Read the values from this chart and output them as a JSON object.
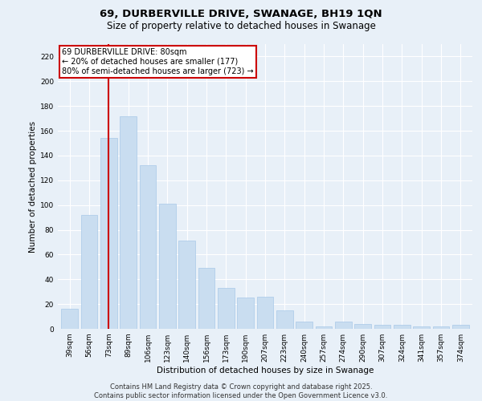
{
  "title": "69, DURBERVILLE DRIVE, SWANAGE, BH19 1QN",
  "subtitle": "Size of property relative to detached houses in Swanage",
  "xlabel": "Distribution of detached houses by size in Swanage",
  "ylabel": "Number of detached properties",
  "categories": [
    "39sqm",
    "56sqm",
    "73sqm",
    "89sqm",
    "106sqm",
    "123sqm",
    "140sqm",
    "156sqm",
    "173sqm",
    "190sqm",
    "207sqm",
    "223sqm",
    "240sqm",
    "257sqm",
    "274sqm",
    "290sqm",
    "307sqm",
    "324sqm",
    "341sqm",
    "357sqm",
    "374sqm"
  ],
  "values": [
    16,
    92,
    154,
    172,
    132,
    101,
    71,
    49,
    33,
    25,
    26,
    15,
    6,
    2,
    6,
    4,
    3,
    3,
    2,
    2,
    3
  ],
  "bar_color": "#c9ddf0",
  "bar_edge_color": "#a8c8e8",
  "vline_x": 2,
  "vline_color": "#cc0000",
  "annotation_text": "69 DURBERVILLE DRIVE: 80sqm\n← 20% of detached houses are smaller (177)\n80% of semi-detached houses are larger (723) →",
  "annotation_box_color": "#ffffff",
  "annotation_box_edge": "#cc0000",
  "ylim": [
    0,
    230
  ],
  "yticks": [
    0,
    20,
    40,
    60,
    80,
    100,
    120,
    140,
    160,
    180,
    200,
    220
  ],
  "background_color": "#e8f0f8",
  "footer_line1": "Contains HM Land Registry data © Crown copyright and database right 2025.",
  "footer_line2": "Contains public sector information licensed under the Open Government Licence v3.0.",
  "title_fontsize": 9.5,
  "subtitle_fontsize": 8.5,
  "axis_label_fontsize": 7.5,
  "tick_fontsize": 6.5,
  "annotation_fontsize": 7,
  "footer_fontsize": 6
}
